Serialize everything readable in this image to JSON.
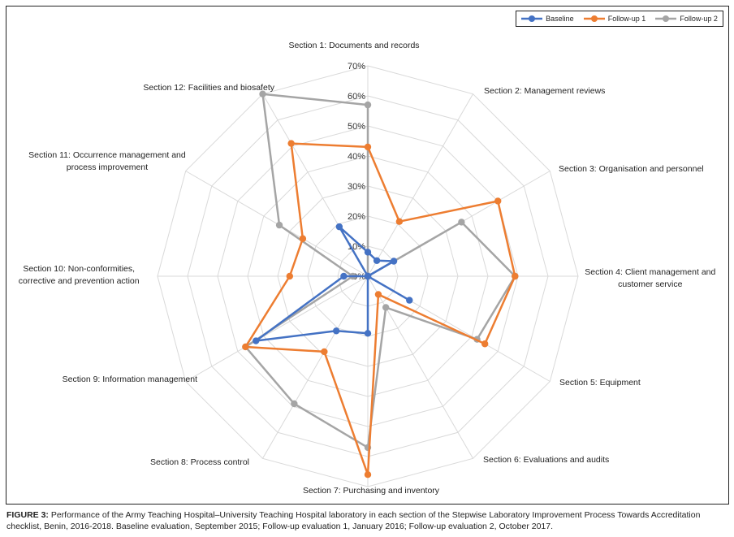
{
  "chart_data": {
    "type": "radar",
    "title": "",
    "categories": [
      "Section 1: Documents and records",
      "Section 2: Management reviews",
      "Section 3: Organisation and personnel",
      "Section 4: Client management and customer service",
      "Section 5: Equipment",
      "Section 6: Evaluations and audits",
      "Section 7: Purchasing and inventory",
      "Section 8: Process control",
      "Section 9: Information management",
      "Section 10: Non-conformities, corrective and prevention action",
      "Section 11: Occurrence management and process improvement",
      "Section 12: Facilities and biosafety"
    ],
    "category_label_lines": [
      [
        "Section 1: Documents and records"
      ],
      [
        "Section 2: Management reviews"
      ],
      [
        "Section 3: Organisation and personnel"
      ],
      [
        "Section 4: Client management and",
        "customer service"
      ],
      [
        "Section 5: Equipment"
      ],
      [
        "Section 6: Evaluations and audits"
      ],
      [
        "Section 7: Purchasing and inventory"
      ],
      [
        "Section 8: Process control"
      ],
      [
        "Section 9: Information management"
      ],
      [
        "Section 10: Non-conformities,",
        "corrective and prevention action"
      ],
      [
        "Section 11: Occurrence management and",
        "process improvement"
      ],
      [
        "Section 12: Facilities and biosafety"
      ]
    ],
    "series": [
      {
        "name": "Baseline",
        "color": "#4472C4",
        "values": [
          8,
          6,
          10,
          0,
          16,
          0,
          19,
          21,
          43,
          8,
          0,
          19
        ]
      },
      {
        "name": "Follow-up 1",
        "color": "#ED7D31",
        "values": [
          43,
          21,
          50,
          49,
          45,
          7,
          66,
          29,
          47,
          26,
          25,
          51
        ]
      },
      {
        "name": "Follow-up 2",
        "color": "#A5A5A5",
        "values": [
          57,
          0,
          36,
          49,
          42,
          12,
          57,
          49,
          47,
          5,
          34,
          70
        ]
      }
    ],
    "radial_ticks": [
      "0%",
      "10%",
      "20%",
      "30%",
      "40%",
      "50%",
      "60%",
      "70%"
    ],
    "rlim": [
      0,
      70
    ],
    "grid": true,
    "legend_position": "top-right"
  },
  "legend": {
    "items": [
      "Baseline",
      "Follow-up 1",
      "Follow-up 2"
    ]
  },
  "caption": {
    "label": "FIGURE 3:",
    "text": " Performance of the Army Teaching Hospital–University Teaching Hospital laboratory in each section of the Stepwise Laboratory Improvement Process Towards Accreditation checklist, Benin, 2016-2018. Baseline evaluation, September 2015; Follow-up evaluation 1, January 2016; Follow-up evaluation 2, October 2017."
  }
}
